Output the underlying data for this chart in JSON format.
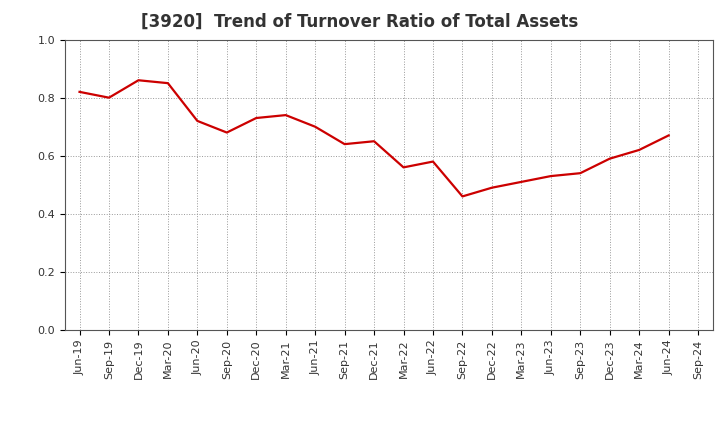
{
  "title": "[3920]  Trend of Turnover Ratio of Total Assets",
  "x_labels": [
    "Jun-19",
    "Sep-19",
    "Dec-19",
    "Mar-20",
    "Jun-20",
    "Sep-20",
    "Dec-20",
    "Mar-21",
    "Jun-21",
    "Sep-21",
    "Dec-21",
    "Mar-22",
    "Jun-22",
    "Sep-22",
    "Dec-22",
    "Mar-23",
    "Jun-23",
    "Sep-23",
    "Dec-23",
    "Mar-24",
    "Jun-24",
    "Sep-24"
  ],
  "values": [
    0.82,
    0.8,
    0.86,
    0.85,
    0.72,
    0.68,
    0.73,
    0.74,
    0.7,
    0.64,
    0.65,
    0.56,
    0.58,
    0.46,
    0.49,
    0.51,
    0.53,
    0.54,
    0.59,
    0.62,
    0.67,
    null
  ],
  "line_color": "#cc0000",
  "line_width": 1.6,
  "ylim": [
    0.0,
    1.0
  ],
  "yticks": [
    0.0,
    0.2,
    0.4,
    0.6,
    0.8,
    1.0
  ],
  "ytick_labels": [
    "0.0",
    "0.2",
    "0.4",
    "0.6",
    "0.8",
    "1.0"
  ],
  "grid_color": "#999999",
  "background_color": "#ffffff",
  "plot_bg_color": "#ffffff",
  "title_fontsize": 12,
  "tick_fontsize": 8,
  "title_color": "#333333"
}
